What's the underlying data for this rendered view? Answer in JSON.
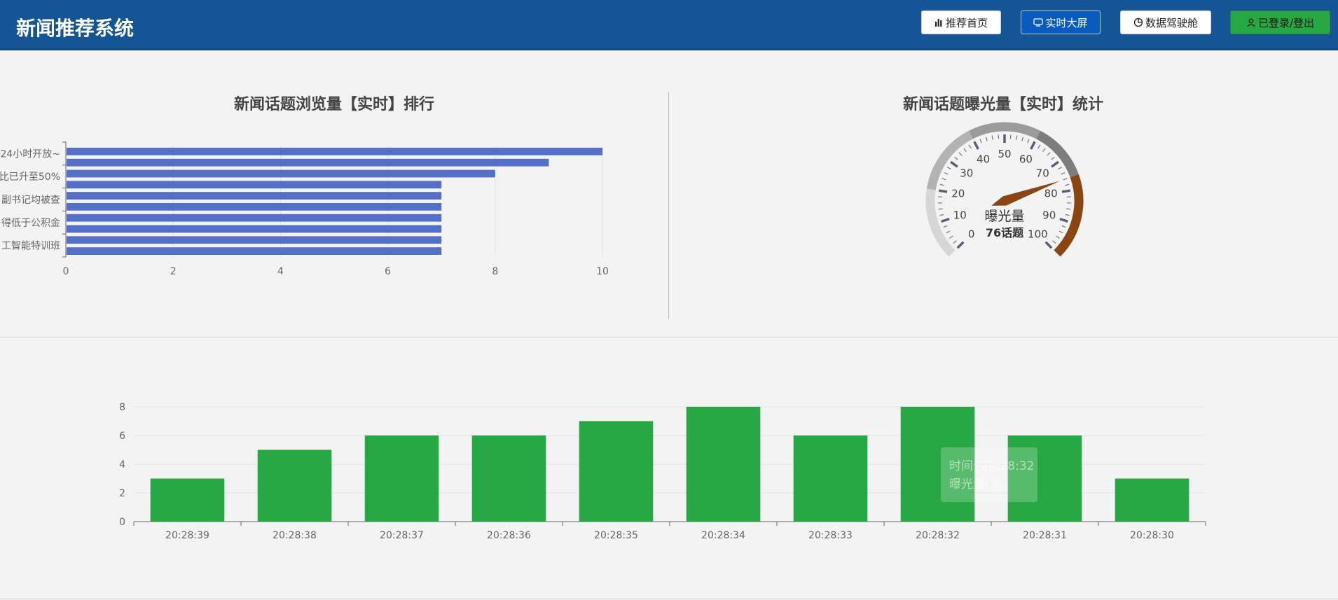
{
  "app": {
    "title": "新闻推荐系统"
  },
  "nav": {
    "home": "推荐首页",
    "screen": "实时大屏",
    "cockpit": "数据驾驶舱",
    "login": "已登录/登出"
  },
  "colors": {
    "header": "#155595",
    "bar_blue": "#5470c6",
    "bar_green": "#28a745",
    "gauge_pointer": "#8b4513"
  },
  "ranking": {
    "title": "新闻话题浏览量【实时】排行"
  },
  "gauge": {
    "title": "新闻话题曝光量【实时】统计",
    "name": "曝光量",
    "detail": "76话题"
  },
  "tooltip": {
    "line1": "时间: 20:28:32",
    "line2": "曝光量: 8"
  },
  "chart_data": [
    {
      "type": "bar",
      "orientation": "horizontal",
      "title": "新闻话题浏览量【实时】排行",
      "categories_visible_labels": [
        "24小时开放~",
        "比已升至50%",
        "副书记均被查",
        "得低于公积金",
        "工智能特训班"
      ],
      "values": [
        10,
        9,
        8,
        7,
        7,
        7,
        7,
        7,
        7,
        7
      ],
      "xlim": [
        0,
        10
      ],
      "xticks": [
        0,
        2,
        4,
        6,
        8,
        10
      ],
      "grid": true
    },
    {
      "type": "gauge",
      "title": "新闻话题曝光量【实时】统计",
      "value": 76,
      "min": 0,
      "max": 100,
      "ticks": [
        0,
        10,
        20,
        30,
        40,
        50,
        60,
        70,
        80,
        90,
        100
      ],
      "name": "曝光量",
      "detail": "76话题"
    },
    {
      "type": "bar",
      "orientation": "vertical",
      "categories": [
        "20:28:39",
        "20:28:38",
        "20:28:37",
        "20:28:36",
        "20:28:35",
        "20:28:34",
        "20:28:33",
        "20:28:32",
        "20:28:31",
        "20:28:30"
      ],
      "values": [
        3,
        5,
        6,
        6,
        7,
        8,
        6,
        8,
        6,
        3
      ],
      "ylim": [
        0,
        8
      ],
      "yticks": [
        0,
        2,
        4,
        6,
        8
      ],
      "grid": true
    }
  ]
}
